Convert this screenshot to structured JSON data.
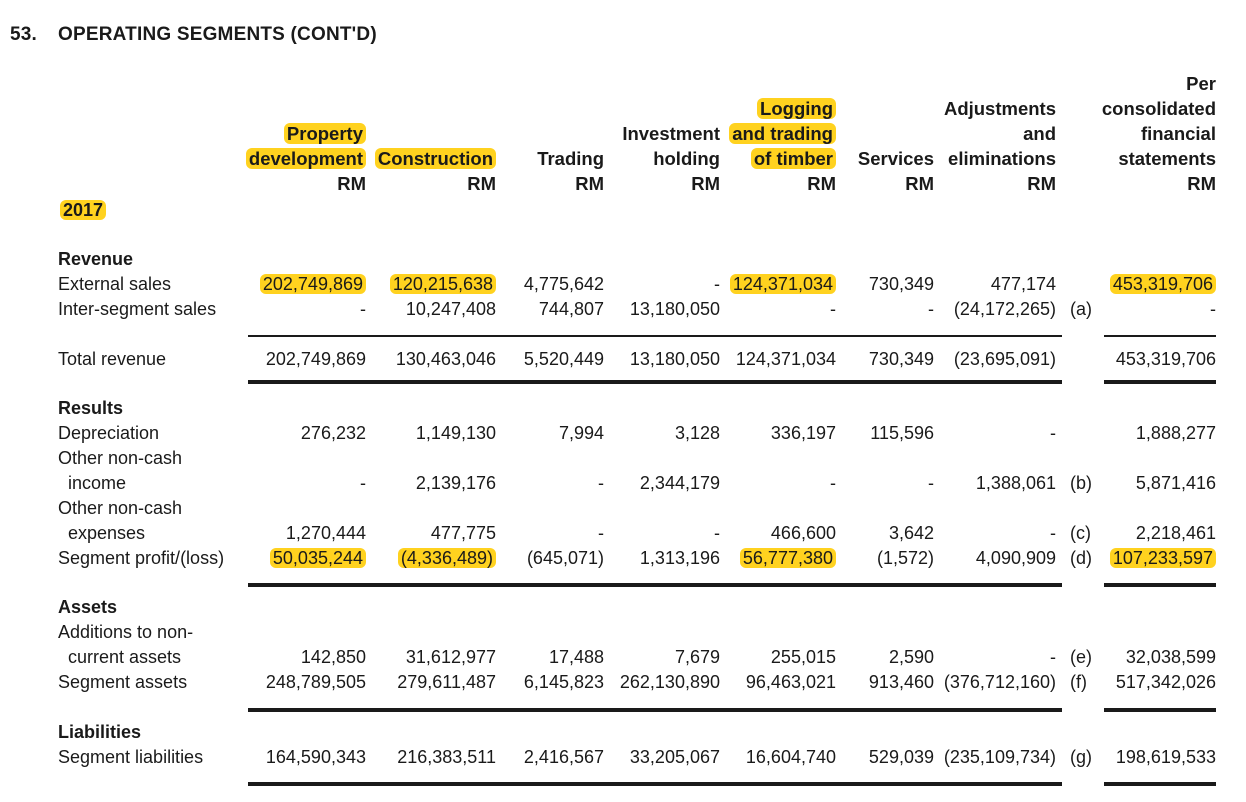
{
  "title": {
    "number": "53.",
    "text": "OPERATING SEGMENTS (CONT'D)"
  },
  "year": "2017",
  "columns": [
    {
      "id": "prop",
      "lines": [
        "Property",
        "development",
        "RM"
      ],
      "hl": [
        true,
        true,
        false
      ]
    },
    {
      "id": "cons",
      "lines": [
        "Construction",
        "RM"
      ],
      "hl": [
        true,
        false
      ]
    },
    {
      "id": "trad",
      "lines": [
        "Trading",
        "RM"
      ],
      "hl": [
        false,
        false
      ]
    },
    {
      "id": "inv",
      "lines": [
        "Investment",
        "holding",
        "RM"
      ],
      "hl": [
        false,
        false,
        false
      ]
    },
    {
      "id": "log",
      "lines": [
        "Logging",
        "and trading",
        "of timber",
        "RM"
      ],
      "hl": [
        true,
        true,
        true,
        false
      ]
    },
    {
      "id": "serv",
      "lines": [
        "Services",
        "RM"
      ],
      "hl": [
        false,
        false
      ]
    },
    {
      "id": "adj",
      "lines": [
        "Adjustments",
        "and",
        "eliminations",
        "RM"
      ],
      "hl": [
        false,
        false,
        false,
        false
      ]
    },
    {
      "id": "cons_fs",
      "lines": [
        "Per",
        "consolidated",
        "financial",
        "statements",
        "RM"
      ],
      "hl": [
        false,
        false,
        false,
        false,
        false
      ]
    }
  ],
  "rows": [
    {
      "type": "label",
      "label": "Revenue",
      "bold": true
    },
    {
      "type": "data",
      "label": "External sales",
      "values": [
        "202,749,869",
        "120,215,638",
        "4,775,642",
        "-",
        "124,371,034",
        "730,349",
        "477,174",
        "453,319,706"
      ],
      "note": "",
      "hl": [
        true,
        true,
        false,
        false,
        true,
        false,
        false,
        true
      ]
    },
    {
      "type": "data",
      "label": "Inter-segment sales",
      "values": [
        "-",
        "10,247,408",
        "744,807",
        "13,180,050",
        "-",
        "-",
        "(24,172,265)",
        "-"
      ],
      "note": "(a)"
    },
    {
      "type": "data",
      "label": "Total revenue",
      "values": [
        "202,749,869",
        "130,463,046",
        "5,520,449",
        "13,180,050",
        "124,371,034",
        "730,349",
        "(23,695,091)",
        "453,319,706"
      ],
      "note": ""
    },
    {
      "type": "label",
      "label": "Results",
      "bold": true
    },
    {
      "type": "data",
      "label": "Depreciation",
      "values": [
        "276,232",
        "1,149,130",
        "7,994",
        "3,128",
        "336,197",
        "115,596",
        "-",
        "1,888,277"
      ],
      "note": ""
    },
    {
      "type": "label",
      "label": "Other non-cash"
    },
    {
      "type": "data",
      "label": "income",
      "indent": true,
      "values": [
        "-",
        "2,139,176",
        "-",
        "2,344,179",
        "-",
        "-",
        "1,388,061",
        "5,871,416"
      ],
      "note": "(b)"
    },
    {
      "type": "label",
      "label": "Other non-cash"
    },
    {
      "type": "data",
      "label": "expenses",
      "indent": true,
      "values": [
        "1,270,444",
        "477,775",
        "-",
        "-",
        "466,600",
        "3,642",
        "-",
        "2,218,461"
      ],
      "note": "(c)"
    },
    {
      "type": "data",
      "label": "Segment profit/(loss)",
      "values": [
        "50,035,244",
        "(4,336,489)",
        "(645,071)",
        "1,313,196",
        "56,777,380",
        "(1,572)",
        "4,090,909",
        "107,233,597"
      ],
      "note": "(d)",
      "hl": [
        true,
        true,
        false,
        false,
        true,
        false,
        false,
        true
      ]
    },
    {
      "type": "label",
      "label": "Assets",
      "bold": true
    },
    {
      "type": "label",
      "label": "Additions to non-"
    },
    {
      "type": "data",
      "label": "current assets",
      "indent": true,
      "values": [
        "142,850",
        "31,612,977",
        "17,488",
        "7,679",
        "255,015",
        "2,590",
        "-",
        "32,038,599"
      ],
      "note": "(e)"
    },
    {
      "type": "data",
      "label": "Segment assets",
      "values": [
        "248,789,505",
        "279,611,487",
        "6,145,823",
        "262,130,890",
        "96,463,021",
        "913,460",
        "(376,712,160)",
        "517,342,026"
      ],
      "note": "(f)"
    },
    {
      "type": "label",
      "label": "Liabilities",
      "bold": true
    },
    {
      "type": "data",
      "label": "Segment liabilities",
      "values": [
        "164,590,343",
        "216,383,511",
        "2,416,567",
        "33,205,067",
        "16,604,740",
        "529,039",
        "(235,109,734)",
        "198,619,533"
      ],
      "note": "(g)"
    }
  ]
}
